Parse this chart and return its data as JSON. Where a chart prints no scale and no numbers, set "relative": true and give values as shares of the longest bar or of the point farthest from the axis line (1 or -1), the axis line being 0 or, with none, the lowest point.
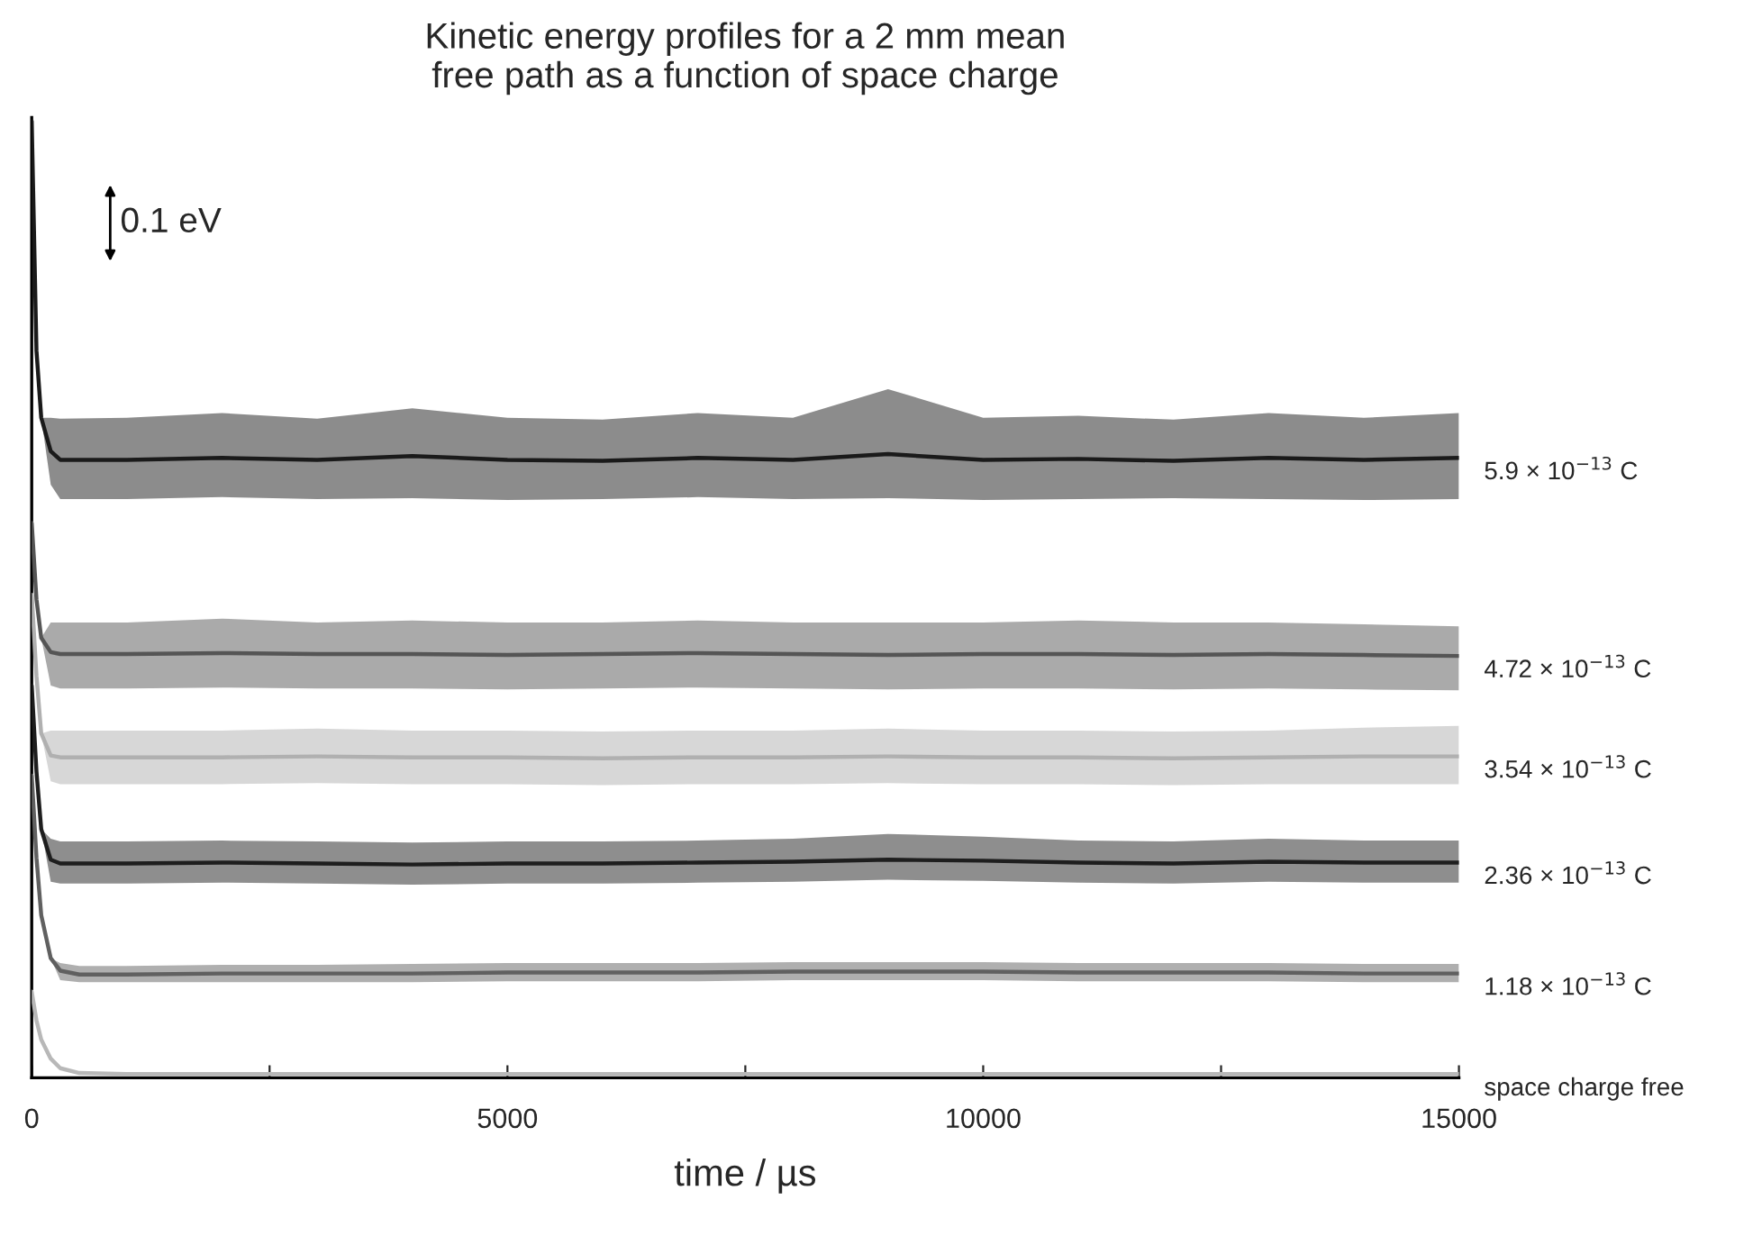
{
  "chart_data": {
    "type": "line",
    "relative": true,
    "title": "Kinetic energy profiles for a 2 mm mean\nfree path as a function of space charge",
    "xlabel": "time / µs",
    "xlim": [
      0,
      15000
    ],
    "xticks": [
      0,
      {
        "value": 2500,
        "label": null
      },
      5000,
      {
        "value": 7500,
        "label": null
      },
      10000,
      {
        "value": 12500,
        "label": null
      },
      15000
    ],
    "annotations": [
      "0.1 eV"
    ],
    "marker": "none",
    "line_style": "solid",
    "series": [
      {
        "name": "5.9 × 10$^{−13}$ C",
        "color": "#1a1a1a",
        "x": [
          0,
          50,
          100,
          200,
          300,
          1000,
          2000,
          3000,
          4000,
          5000,
          6000,
          7000,
          8000,
          9000,
          10000,
          11000,
          12000,
          13000,
          14000,
          15000
        ],
        "values": [
          1.0,
          0.76,
          0.69,
          0.655,
          0.646,
          0.646,
          0.648,
          0.646,
          0.65,
          0.646,
          0.645,
          0.648,
          0.646,
          0.652,
          0.646,
          0.647,
          0.645,
          0.648,
          0.646,
          0.648
        ],
        "lower": [
          1.0,
          0.76,
          0.69,
          0.62,
          0.605,
          0.605,
          0.607,
          0.605,
          0.606,
          0.604,
          0.605,
          0.607,
          0.605,
          0.606,
          0.604,
          0.605,
          0.606,
          0.605,
          0.604,
          0.605
        ],
        "upper": [
          1.0,
          0.76,
          0.69,
          0.69,
          0.689,
          0.69,
          0.695,
          0.689,
          0.7,
          0.69,
          0.688,
          0.695,
          0.69,
          0.72,
          0.69,
          0.692,
          0.688,
          0.695,
          0.69,
          0.695
        ]
      },
      {
        "name": "4.72 × 10$^{−13}$ C",
        "color": "#555555",
        "x": [
          0,
          50,
          100,
          200,
          300,
          1000,
          2000,
          3000,
          4000,
          5000,
          6000,
          7000,
          8000,
          9000,
          10000,
          11000,
          12000,
          13000,
          14000,
          15000
        ],
        "values": [
          0.58,
          0.5,
          0.46,
          0.445,
          0.443,
          0.443,
          0.444,
          0.443,
          0.443,
          0.442,
          0.443,
          0.444,
          0.443,
          0.442,
          0.443,
          0.443,
          0.442,
          0.443,
          0.442,
          0.441
        ],
        "lower": [
          0.58,
          0.5,
          0.46,
          0.41,
          0.407,
          0.407,
          0.408,
          0.407,
          0.407,
          0.406,
          0.407,
          0.408,
          0.407,
          0.406,
          0.407,
          0.407,
          0.406,
          0.407,
          0.406,
          0.405
        ],
        "upper": [
          0.58,
          0.5,
          0.46,
          0.476,
          0.476,
          0.476,
          0.48,
          0.476,
          0.478,
          0.476,
          0.476,
          0.478,
          0.476,
          0.476,
          0.476,
          0.478,
          0.476,
          0.476,
          0.474,
          0.472
        ]
      },
      {
        "name": "3.54 × 10$^{−13}$ C",
        "color": "#b0b0b0",
        "x": [
          0,
          50,
          100,
          200,
          300,
          1000,
          2000,
          3000,
          4000,
          5000,
          6000,
          7000,
          8000,
          9000,
          10000,
          11000,
          12000,
          13000,
          14000,
          15000
        ],
        "values": [
          0.505,
          0.42,
          0.36,
          0.337,
          0.335,
          0.335,
          0.335,
          0.336,
          0.335,
          0.335,
          0.334,
          0.335,
          0.335,
          0.336,
          0.335,
          0.335,
          0.334,
          0.335,
          0.336,
          0.336
        ],
        "lower": [
          0.505,
          0.42,
          0.36,
          0.31,
          0.307,
          0.307,
          0.307,
          0.308,
          0.307,
          0.307,
          0.306,
          0.307,
          0.307,
          0.308,
          0.307,
          0.307,
          0.306,
          0.307,
          0.307,
          0.307
        ],
        "upper": [
          0.505,
          0.42,
          0.36,
          0.363,
          0.363,
          0.363,
          0.363,
          0.365,
          0.363,
          0.363,
          0.362,
          0.363,
          0.363,
          0.365,
          0.363,
          0.363,
          0.362,
          0.363,
          0.366,
          0.368
        ]
      },
      {
        "name": "2.36 × 10$^{−13}$ C",
        "color": "#1e1e1e",
        "x": [
          0,
          50,
          100,
          200,
          300,
          1000,
          2000,
          3000,
          4000,
          5000,
          6000,
          7000,
          8000,
          9000,
          10000,
          11000,
          12000,
          13000,
          14000,
          15000
        ],
        "values": [
          0.41,
          0.32,
          0.26,
          0.228,
          0.224,
          0.224,
          0.225,
          0.224,
          0.223,
          0.224,
          0.224,
          0.225,
          0.226,
          0.228,
          0.227,
          0.225,
          0.224,
          0.226,
          0.225,
          0.225
        ],
        "lower": [
          0.41,
          0.32,
          0.26,
          0.205,
          0.203,
          0.203,
          0.204,
          0.203,
          0.202,
          0.203,
          0.203,
          0.204,
          0.205,
          0.207,
          0.206,
          0.204,
          0.203,
          0.205,
          0.204,
          0.204
        ],
        "upper": [
          0.41,
          0.32,
          0.26,
          0.25,
          0.247,
          0.247,
          0.248,
          0.247,
          0.246,
          0.247,
          0.247,
          0.248,
          0.25,
          0.255,
          0.252,
          0.248,
          0.247,
          0.25,
          0.248,
          0.248
        ]
      },
      {
        "name": "1.18 × 10$^{−13}$ C",
        "color": "#606060",
        "x": [
          0,
          50,
          100,
          200,
          300,
          500,
          1000,
          2000,
          3000,
          4000,
          5000,
          6000,
          7000,
          8000,
          9000,
          10000,
          11000,
          12000,
          13000,
          14000,
          15000
        ],
        "values": [
          0.316,
          0.23,
          0.17,
          0.125,
          0.112,
          0.108,
          0.108,
          0.109,
          0.109,
          0.109,
          0.11,
          0.11,
          0.11,
          0.111,
          0.111,
          0.111,
          0.11,
          0.11,
          0.11,
          0.109,
          0.109
        ],
        "lower": [
          0.316,
          0.23,
          0.17,
          0.125,
          0.102,
          0.1,
          0.1,
          0.1,
          0.1,
          0.1,
          0.101,
          0.101,
          0.101,
          0.102,
          0.102,
          0.102,
          0.101,
          0.101,
          0.101,
          0.1,
          0.1
        ],
        "upper": [
          0.316,
          0.23,
          0.17,
          0.125,
          0.12,
          0.117,
          0.117,
          0.118,
          0.118,
          0.119,
          0.12,
          0.12,
          0.12,
          0.121,
          0.121,
          0.121,
          0.12,
          0.12,
          0.12,
          0.119,
          0.119
        ]
      },
      {
        "name": "space charge free",
        "color": "#b8b8b8",
        "x": [
          0,
          50,
          100,
          200,
          300,
          500,
          1000,
          15000
        ],
        "values": [
          0.09,
          0.06,
          0.04,
          0.02,
          0.01,
          0.005,
          0.004,
          0.004
        ]
      }
    ]
  }
}
